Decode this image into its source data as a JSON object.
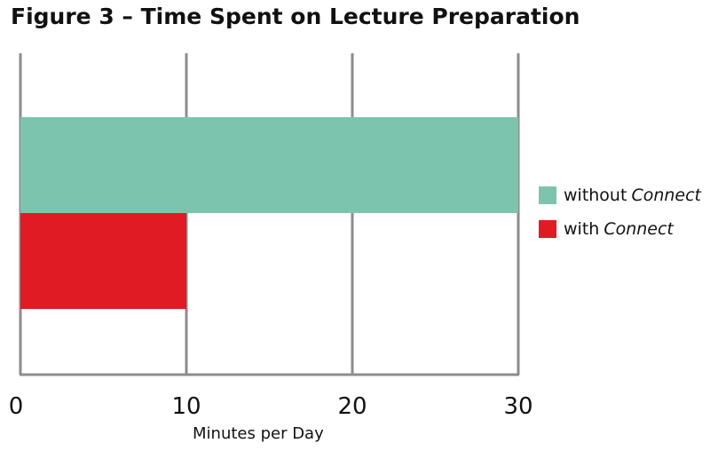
{
  "chart_data": {
    "type": "bar",
    "orientation": "horizontal",
    "title": "Figure 3 – Time Spent on Lecture Preparation",
    "xlabel": "Minutes per Day",
    "ylabel": "",
    "xlim": [
      0,
      30
    ],
    "xticks": [
      "0",
      "10",
      "20",
      "30"
    ],
    "grid": "vertical",
    "legend_position": "right",
    "series": [
      {
        "name": "without",
        "name_italic": "Connect",
        "value": 30,
        "color": "#7cc4ae"
      },
      {
        "name": "with",
        "name_italic": "Connect",
        "value": 10,
        "color": "#e01b24"
      }
    ]
  }
}
